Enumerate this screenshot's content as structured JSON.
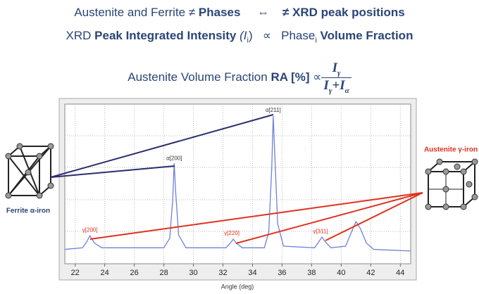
{
  "header": {
    "line1": [
      "Austenite and Ferrite ≠",
      "Phases",
      "⇔",
      "≠ XRD peak positions"
    ],
    "line2": [
      "XRD",
      "Peak Integrated Intensity",
      "(I",
      "i",
      ")",
      "∝",
      "Phase",
      "i",
      "Volume Fraction"
    ],
    "line3": [
      "Austenite Volume Fraction",
      "RA [%]",
      "∝",
      "I",
      "γ",
      "I",
      "γ",
      "+I",
      "α"
    ]
  },
  "left_label": "Ferrite α-iron",
  "right_label": "Austenite γ-iron",
  "chart_data": {
    "type": "line",
    "x_label": "Angle (deg)",
    "xlim": [
      21.3,
      44.7
    ],
    "xticks": [
      22,
      24,
      26,
      28,
      30,
      32,
      34,
      36,
      38,
      40,
      42,
      44
    ],
    "ylim": [
      0,
      100
    ],
    "grid": true,
    "series": [
      {
        "color": "#6f80d8",
        "x": [
          21.3,
          22.5,
          22.8,
          23.0,
          23.3,
          23.8,
          28.0,
          28.4,
          28.6,
          28.7,
          28.8,
          29.0,
          29.5,
          32.2,
          32.5,
          32.7,
          32.9,
          33.3,
          34.8,
          35.1,
          35.3,
          35.4,
          35.5,
          35.7,
          36.1,
          38.2,
          38.5,
          38.7,
          38.9,
          39.3,
          40.3,
          40.7,
          41.0,
          41.3,
          41.7,
          42.2,
          44.7
        ],
        "values": [
          9,
          10,
          14,
          17.6,
          13,
          10,
          10,
          16,
          40,
          63,
          45,
          18,
          10,
          10,
          13,
          15.4,
          13,
          10,
          10,
          20,
          60,
          92.5,
          70,
          25,
          11,
          10,
          14,
          16.7,
          14,
          10,
          11,
          20,
          26.4,
          22,
          13,
          9,
          8
        ]
      }
    ],
    "annotations": [
      {
        "text": "γ[200]",
        "x": 23.0,
        "y": 21,
        "color": "#e0301e"
      },
      {
        "text": "α[200]",
        "x": 28.7,
        "y": 66,
        "color": "#333333"
      },
      {
        "text": "γ[220]",
        "x": 32.6,
        "y": 19,
        "color": "#e0301e"
      },
      {
        "text": "α[211]",
        "x": 35.4,
        "y": 96,
        "color": "#333333"
      },
      {
        "text": "γ[311]",
        "x": 38.6,
        "y": 20,
        "color": "#e0301e"
      }
    ]
  }
}
